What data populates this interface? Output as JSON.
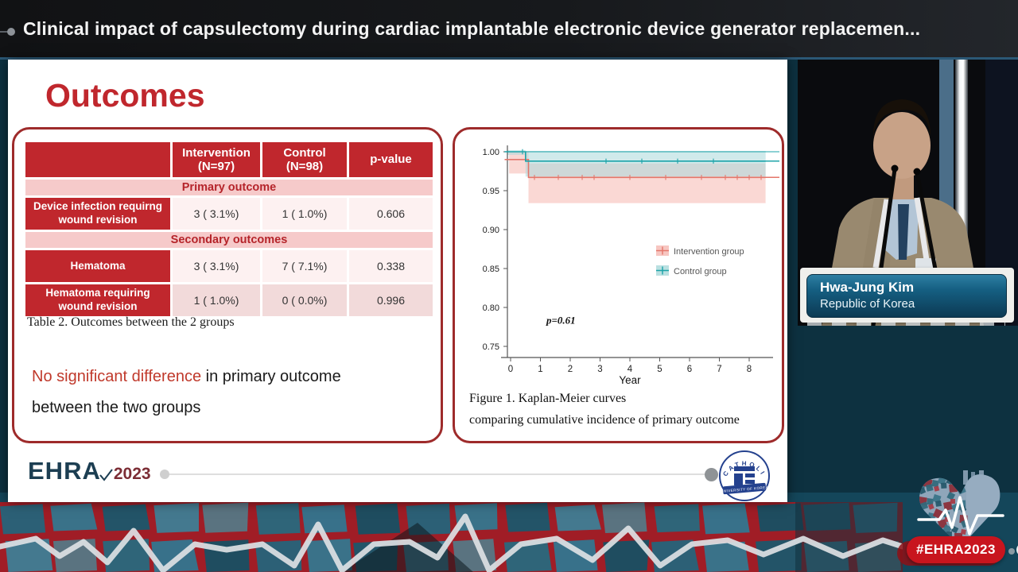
{
  "header": {
    "title": "Clinical impact of capsulectomy during cardiac implantable electronic device generator replacemen..."
  },
  "slide": {
    "title": "Outcomes",
    "table": {
      "caption": "Table 2. Outcomes between the 2 groups",
      "columns": [
        {
          "line1": "",
          "line2": ""
        },
        {
          "line1": "Intervention",
          "line2": "(N=97)"
        },
        {
          "line1": "Control",
          "line2": "(N=98)"
        },
        {
          "line1": "p-value",
          "line2": ""
        }
      ],
      "rows": [
        {
          "type": "section",
          "label": "Primary outcome"
        },
        {
          "type": "data",
          "shade": "light",
          "label": "Device infection requirng wound revision",
          "intervention": "3 ( 3.1%)",
          "control": "1 ( 1.0%)",
          "p_value": "0.606"
        },
        {
          "type": "section",
          "label": "Secondary outcomes"
        },
        {
          "type": "data",
          "shade": "light",
          "label": "Hematoma",
          "intervention": "3 ( 3.1%)",
          "control": "7 ( 7.1%)",
          "p_value": "0.338"
        },
        {
          "type": "data",
          "shade": "mid",
          "label": "Hematoma requiring wound revision",
          "intervention": "1 ( 1.0%)",
          "control": "0 ( 0.0%)",
          "p_value": "0.996"
        }
      ]
    },
    "message": {
      "highlight": "No significant difference",
      "rest": " in primary outcome",
      "line2": "between the two groups"
    },
    "figure_caption_line1": "Figure 1. Kaplan-Meier curves",
    "figure_caption_line2": "comparing cumulative incidence of primary outcome",
    "footer": {
      "ehra": "EHRA",
      "year": "2023",
      "university_top": "CATHOLIC",
      "university_bottom": "UNIVERSITY OF KOREA"
    }
  },
  "speaker": {
    "name": "Hwa-Jung Kim",
    "country": "Republic of Korea"
  },
  "badge": {
    "hashtag": "#EHRA2023"
  },
  "colors": {
    "accent_red": "#c0272d",
    "panel_border_red": "#9e2b2b",
    "section_pink": "#f6caca",
    "row_light_pink": "#fdf1f1",
    "row_mid_pink": "#f2dada",
    "highlight_red": "#c0392b",
    "navy": "#1c3e52",
    "maroon": "#7c2d35",
    "teal_background": "#14465a",
    "badge_red": "#c8151e",
    "intervention_color": "#e4766b",
    "control_color": "#1ba3a8"
  },
  "chart_data": {
    "type": "line",
    "subtype": "kaplan-meier-step",
    "title": "",
    "xlabel": "Year",
    "ylabel": "",
    "xlim": [
      -0.45,
      8.6
    ],
    "ylim": [
      0.745,
      1.005
    ],
    "yticks": [
      1.0,
      0.95,
      0.9,
      0.85,
      0.8,
      0.75
    ],
    "xticks": [
      0,
      1,
      2,
      3,
      4,
      5,
      6,
      7,
      8
    ],
    "grid": false,
    "legend_position": "center-right",
    "annotation": {
      "text": "p=0.61",
      "x": 1.2,
      "y": 0.779
    },
    "series": [
      {
        "name": "Intervention group",
        "color": "#e4766b",
        "band_color": "#f5b8b1",
        "steps": [
          [
            -0.2,
            0.99
          ],
          [
            0.6,
            0.99
          ],
          [
            0.6,
            0.967
          ],
          [
            8.55,
            0.967
          ]
        ],
        "ci_bands": [
          {
            "t0": -0.05,
            "t1": 0.6,
            "lo": 0.972,
            "hi": 1.0
          },
          {
            "t0": 0.6,
            "t1": 8.55,
            "lo": 0.934,
            "hi": 0.985
          }
        ],
        "censor_times": [
          0.1,
          0.2,
          0.3,
          0.8,
          0.95,
          1.1,
          1.25,
          1.4,
          1.6,
          1.75,
          1.9,
          2.05,
          2.2,
          2.4,
          2.6,
          2.8,
          3.1,
          3.25,
          3.4,
          3.55,
          3.7,
          3.85,
          4.0,
          4.15,
          4.3,
          4.45,
          4.6,
          4.75,
          4.9,
          5.05,
          5.2,
          5.35,
          5.5,
          5.65,
          5.8,
          5.95,
          6.1,
          6.25,
          6.4,
          6.55,
          6.7,
          6.85,
          7.0,
          7.2,
          7.4,
          7.6,
          7.8,
          8.0,
          8.2,
          8.4
        ]
      },
      {
        "name": "Control group",
        "color": "#1ba3a8",
        "band_color": "#a9d8da",
        "steps": [
          [
            -0.2,
            1.0
          ],
          [
            0.5,
            1.0
          ],
          [
            0.5,
            0.988
          ],
          [
            8.55,
            0.988
          ]
        ],
        "ci_bands": [
          {
            "t0": -0.1,
            "t1": 0.5,
            "lo": 0.996,
            "hi": 1.002
          },
          {
            "t0": 0.5,
            "t1": 8.55,
            "lo": 0.968,
            "hi": 1.001
          }
        ],
        "censor_times": [
          0.15,
          0.3,
          0.4,
          0.65,
          0.85,
          1.0,
          1.15,
          1.3,
          1.45,
          1.65,
          1.8,
          1.95,
          2.1,
          2.3,
          2.5,
          2.7,
          2.9,
          3.05,
          3.2,
          3.35,
          3.5,
          3.65,
          3.8,
          3.95,
          4.1,
          4.25,
          4.4,
          4.55,
          4.7,
          4.85,
          5.0,
          5.15,
          5.3,
          5.45,
          5.6,
          5.75,
          5.9,
          6.05,
          6.2,
          6.35,
          6.5,
          6.65,
          6.8,
          6.95,
          7.1,
          7.3,
          7.5,
          7.7,
          7.9,
          8.1,
          8.3
        ]
      }
    ]
  }
}
